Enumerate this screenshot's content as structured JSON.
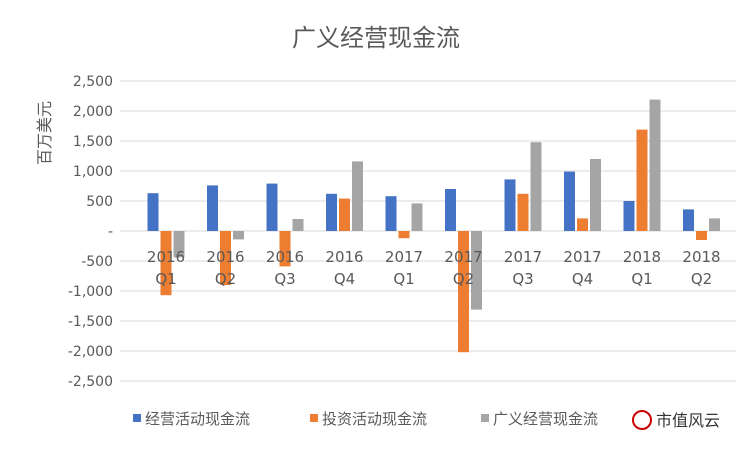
{
  "chart_data": {
    "type": "bar",
    "title": "广义经营现金流",
    "ylabel": "百万美元",
    "xlabel": "",
    "ylim": [
      -2500,
      2500
    ],
    "yticks": [
      2500,
      2000,
      1500,
      1000,
      500,
      0,
      -500,
      -1000,
      -1500,
      -2000,
      -2500
    ],
    "ytick_labels": [
      "2,500",
      "2,000",
      "1,500",
      "1,000",
      "500",
      "-",
      "-500",
      "-1,000",
      "-1,500",
      "-2,000",
      "-2,500"
    ],
    "grid": true,
    "legend_position": "bottom",
    "categories": [
      [
        "2016",
        "Q1"
      ],
      [
        "2016",
        "Q2"
      ],
      [
        "2016",
        "Q3"
      ],
      [
        "2016",
        "Q4"
      ],
      [
        "2017",
        "Q1"
      ],
      [
        "2017",
        "Q2"
      ],
      [
        "2017",
        "Q3"
      ],
      [
        "2017",
        "Q4"
      ],
      [
        "2018",
        "Q1"
      ],
      [
        "2018",
        "Q2"
      ]
    ],
    "series": [
      {
        "name": "经营活动现金流",
        "color": "#4472C4",
        "values": [
          630,
          760,
          790,
          620,
          580,
          700,
          860,
          990,
          500,
          360
        ]
      },
      {
        "name": "投资活动现金流",
        "color": "#ED7D31",
        "values": [
          -1070,
          -900,
          -590,
          540,
          -120,
          -2020,
          620,
          210,
          1690,
          -150
        ]
      },
      {
        "name": "广义经营现金流",
        "color": "#A5A5A5",
        "values": [
          -440,
          -140,
          200,
          1160,
          460,
          -1310,
          1480,
          1200,
          2190,
          210
        ]
      }
    ]
  },
  "watermark": {
    "text": "市值风云"
  }
}
